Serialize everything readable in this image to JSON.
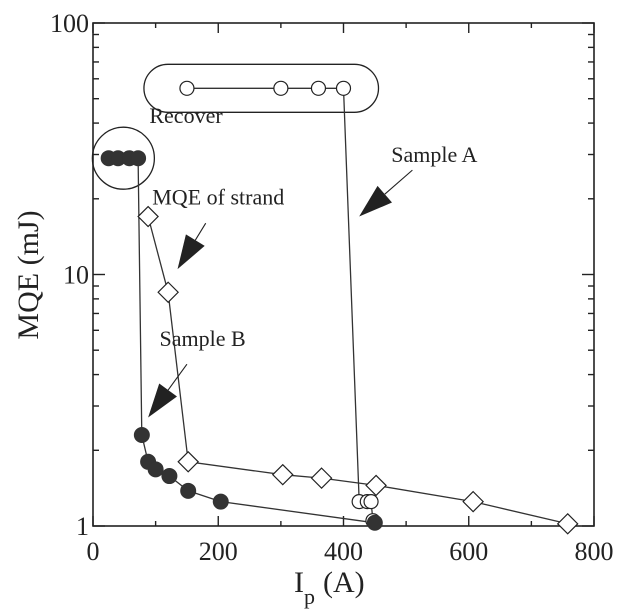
{
  "chart_data": {
    "type": "scatter",
    "title": "",
    "xlabel": "I",
    "xlabel_sub": "p",
    "xlabel_unit": "(A)",
    "ylabel": "MQE (mJ)",
    "xlim": [
      0,
      800
    ],
    "ylim": [
      1,
      100
    ],
    "yscale": "log",
    "grid": false,
    "x_ticks": [
      0,
      200,
      400,
      600,
      800
    ],
    "x_tick_labels": [
      "0",
      "200",
      "400",
      "600",
      "800"
    ],
    "y_ticks": [
      1,
      10,
      100
    ],
    "y_tick_labels": [
      "1",
      "10",
      "100"
    ],
    "series": [
      {
        "name": "Sample A",
        "marker": "open-circle",
        "points": [
          [
            150,
            55
          ],
          [
            300,
            55
          ],
          [
            360,
            55
          ],
          [
            400,
            55
          ],
          [
            425,
            1.25
          ],
          [
            438,
            1.25
          ],
          [
            444,
            1.25
          ],
          [
            447,
            1.05
          ]
        ]
      },
      {
        "name": "MQE of strand",
        "marker": "open-diamond",
        "points": [
          [
            88,
            17
          ],
          [
            120,
            8.5
          ],
          [
            152,
            1.8
          ],
          [
            303,
            1.6
          ],
          [
            365,
            1.55
          ],
          [
            452,
            1.45
          ],
          [
            607,
            1.25
          ],
          [
            758,
            1.02
          ]
        ]
      },
      {
        "name": "Sample B",
        "marker": "filled-circle",
        "points": [
          [
            25,
            29
          ],
          [
            40,
            29
          ],
          [
            58,
            29
          ],
          [
            72,
            29
          ],
          [
            78,
            2.3
          ],
          [
            88,
            1.8
          ],
          [
            100,
            1.68
          ],
          [
            122,
            1.58
          ],
          [
            152,
            1.38
          ],
          [
            204,
            1.25
          ],
          [
            450,
            1.03
          ]
        ]
      }
    ],
    "annotations": [
      {
        "text": "Recover",
        "x": 90,
        "y": 40
      },
      {
        "text": "Sample A",
        "x": 545,
        "y": 28
      },
      {
        "text": "MQE of strand",
        "x": 200,
        "y": 19
      },
      {
        "text": "Sample B",
        "x": 175,
        "y": 5.2
      }
    ],
    "colors": {
      "ink": "#222222",
      "filled": "#333333"
    }
  }
}
